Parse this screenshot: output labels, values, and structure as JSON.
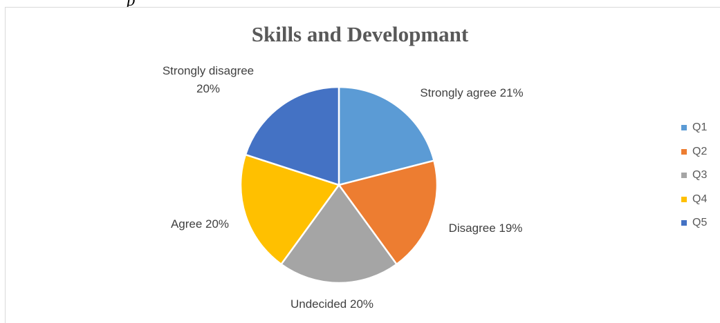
{
  "caption_fragment": "p",
  "chart_data": {
    "type": "pie",
    "title": "Skills and Developmant",
    "slices": [
      {
        "name": "Q1",
        "label": "Strongly agree 21%",
        "value": 21,
        "color": "#5b9bd5"
      },
      {
        "name": "Q2",
        "label": "Disagree 19%",
        "value": 19,
        "color": "#ed7d31"
      },
      {
        "name": "Q3",
        "label": "Undecided 20%",
        "value": 20,
        "color": "#a5a5a5"
      },
      {
        "name": "Q4",
        "label": "Agree 20%",
        "value": 20,
        "color": "#ffc000"
      },
      {
        "name": "Q5",
        "label_lines": [
          "Strongly disagree",
          "20%"
        ],
        "value": 20,
        "color": "#4472c4"
      }
    ],
    "start_direction": "12 o'clock",
    "direction": "clockwise",
    "legend": {
      "position": "right",
      "entries": [
        "Q1",
        "Q2",
        "Q3",
        "Q4",
        "Q5"
      ]
    }
  }
}
